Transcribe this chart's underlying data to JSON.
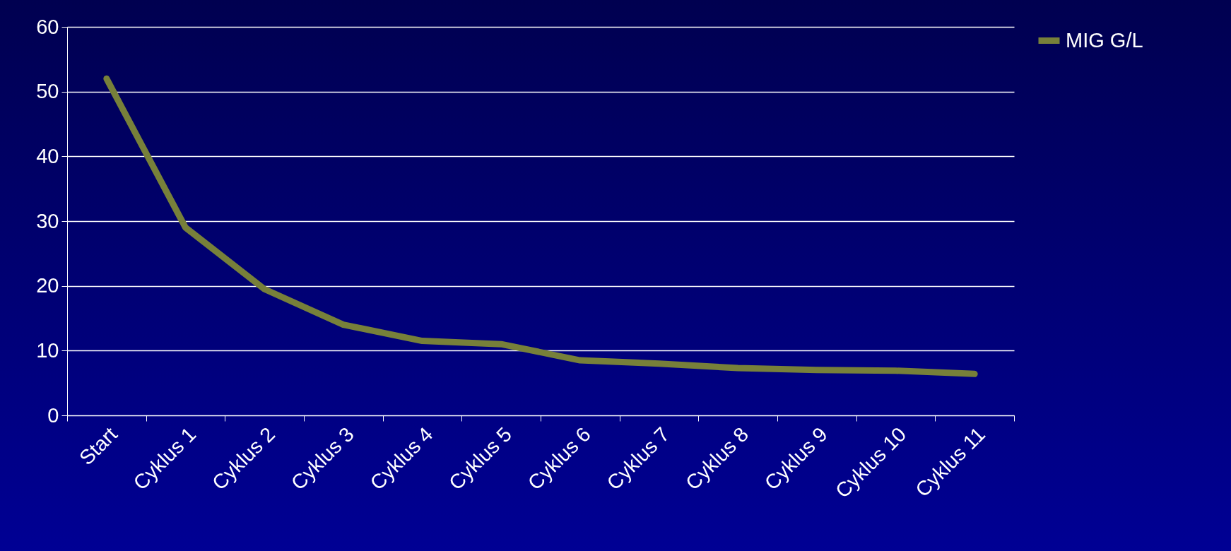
{
  "chart_data": {
    "type": "line",
    "categories": [
      "Start",
      "Cyklus 1",
      "Cyklus 2",
      "Cyklus 3",
      "Cyklus 4",
      "Cyklus 5",
      "Cyklus 6",
      "Cyklus 7",
      "Cyklus 8",
      "Cyklus 9",
      "Cyklus 10",
      "Cyklus 11"
    ],
    "series": [
      {
        "name": "MIG G/L",
        "color": "#77803a",
        "values": [
          52,
          29,
          19.5,
          14,
          11.5,
          11,
          8.5,
          8,
          7.3,
          7,
          6.9,
          6.4
        ]
      }
    ],
    "ylim": [
      0,
      60
    ],
    "yticks": [
      0,
      10,
      20,
      30,
      40,
      50,
      60
    ],
    "grid": "y",
    "legend": "right",
    "marker": "none",
    "line_style": "solid"
  }
}
